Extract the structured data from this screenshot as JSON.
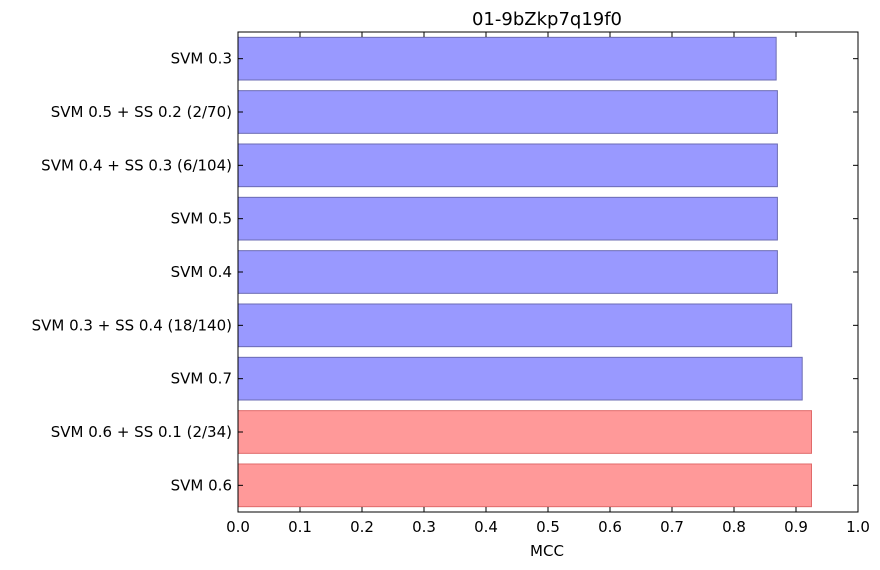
{
  "chart_data": {
    "type": "bar",
    "orientation": "horizontal",
    "title": "01-9bZkp7q19f0",
    "xlabel": "MCC",
    "ylabel": "",
    "xlim": [
      0.0,
      1.0
    ],
    "xticks": [
      "0.0",
      "0.1",
      "0.2",
      "0.3",
      "0.4",
      "0.5",
      "0.6",
      "0.7",
      "0.8",
      "0.9",
      "1.0"
    ],
    "grid": false,
    "categories": [
      "SVM 0.3",
      "SVM 0.5 + SS 0.2 (2/70)",
      "SVM 0.4 + SS 0.3 (6/104)",
      "SVM 0.5",
      "SVM 0.4",
      "SVM 0.3 + SS 0.4 (18/140)",
      "SVM 0.7",
      "SVM 0.6 + SS 0.1 (2/34)",
      "SVM 0.6"
    ],
    "values": [
      0.868,
      0.87,
      0.87,
      0.87,
      0.87,
      0.893,
      0.91,
      0.925,
      0.925
    ],
    "bar_colors": [
      "#9999ff",
      "#9999ff",
      "#9999ff",
      "#9999ff",
      "#9999ff",
      "#9999ff",
      "#9999ff",
      "#ff9999",
      "#ff9999"
    ],
    "edge_colors": [
      "#6b6bb3",
      "#6b6bb3",
      "#6b6bb3",
      "#6b6bb3",
      "#6b6bb3",
      "#6b6bb3",
      "#6b6bb3",
      "#e06a6a",
      "#e06a6a"
    ]
  }
}
